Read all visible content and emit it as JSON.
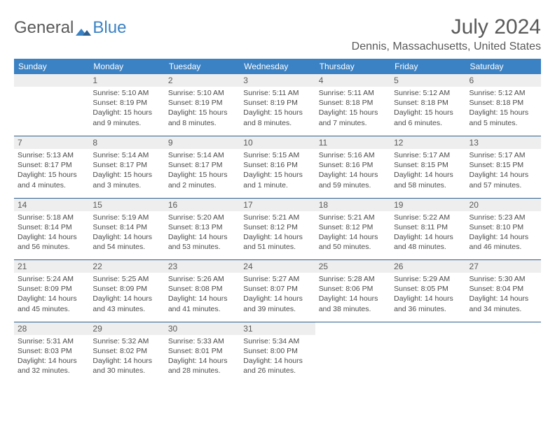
{
  "brand": {
    "part1": "General",
    "part2": "Blue"
  },
  "title": "July 2024",
  "location": "Dennis, Massachusetts, United States",
  "colors": {
    "header_bg": "#3b82c4",
    "header_text": "#ffffff",
    "daynum_bg": "#eeeeee",
    "body_text": "#4b4b4b",
    "title_text": "#595959",
    "week_border": "#2d5f8f"
  },
  "day_headers": [
    "Sunday",
    "Monday",
    "Tuesday",
    "Wednesday",
    "Thursday",
    "Friday",
    "Saturday"
  ],
  "weeks": [
    [
      null,
      {
        "n": "1",
        "sr": "5:10 AM",
        "ss": "8:19 PM",
        "dl": "15 hours and 9 minutes."
      },
      {
        "n": "2",
        "sr": "5:10 AM",
        "ss": "8:19 PM",
        "dl": "15 hours and 8 minutes."
      },
      {
        "n": "3",
        "sr": "5:11 AM",
        "ss": "8:19 PM",
        "dl": "15 hours and 8 minutes."
      },
      {
        "n": "4",
        "sr": "5:11 AM",
        "ss": "8:18 PM",
        "dl": "15 hours and 7 minutes."
      },
      {
        "n": "5",
        "sr": "5:12 AM",
        "ss": "8:18 PM",
        "dl": "15 hours and 6 minutes."
      },
      {
        "n": "6",
        "sr": "5:12 AM",
        "ss": "8:18 PM",
        "dl": "15 hours and 5 minutes."
      }
    ],
    [
      {
        "n": "7",
        "sr": "5:13 AM",
        "ss": "8:17 PM",
        "dl": "15 hours and 4 minutes."
      },
      {
        "n": "8",
        "sr": "5:14 AM",
        "ss": "8:17 PM",
        "dl": "15 hours and 3 minutes."
      },
      {
        "n": "9",
        "sr": "5:14 AM",
        "ss": "8:17 PM",
        "dl": "15 hours and 2 minutes."
      },
      {
        "n": "10",
        "sr": "5:15 AM",
        "ss": "8:16 PM",
        "dl": "15 hours and 1 minute."
      },
      {
        "n": "11",
        "sr": "5:16 AM",
        "ss": "8:16 PM",
        "dl": "14 hours and 59 minutes."
      },
      {
        "n": "12",
        "sr": "5:17 AM",
        "ss": "8:15 PM",
        "dl": "14 hours and 58 minutes."
      },
      {
        "n": "13",
        "sr": "5:17 AM",
        "ss": "8:15 PM",
        "dl": "14 hours and 57 minutes."
      }
    ],
    [
      {
        "n": "14",
        "sr": "5:18 AM",
        "ss": "8:14 PM",
        "dl": "14 hours and 56 minutes."
      },
      {
        "n": "15",
        "sr": "5:19 AM",
        "ss": "8:14 PM",
        "dl": "14 hours and 54 minutes."
      },
      {
        "n": "16",
        "sr": "5:20 AM",
        "ss": "8:13 PM",
        "dl": "14 hours and 53 minutes."
      },
      {
        "n": "17",
        "sr": "5:21 AM",
        "ss": "8:12 PM",
        "dl": "14 hours and 51 minutes."
      },
      {
        "n": "18",
        "sr": "5:21 AM",
        "ss": "8:12 PM",
        "dl": "14 hours and 50 minutes."
      },
      {
        "n": "19",
        "sr": "5:22 AM",
        "ss": "8:11 PM",
        "dl": "14 hours and 48 minutes."
      },
      {
        "n": "20",
        "sr": "5:23 AM",
        "ss": "8:10 PM",
        "dl": "14 hours and 46 minutes."
      }
    ],
    [
      {
        "n": "21",
        "sr": "5:24 AM",
        "ss": "8:09 PM",
        "dl": "14 hours and 45 minutes."
      },
      {
        "n": "22",
        "sr": "5:25 AM",
        "ss": "8:09 PM",
        "dl": "14 hours and 43 minutes."
      },
      {
        "n": "23",
        "sr": "5:26 AM",
        "ss": "8:08 PM",
        "dl": "14 hours and 41 minutes."
      },
      {
        "n": "24",
        "sr": "5:27 AM",
        "ss": "8:07 PM",
        "dl": "14 hours and 39 minutes."
      },
      {
        "n": "25",
        "sr": "5:28 AM",
        "ss": "8:06 PM",
        "dl": "14 hours and 38 minutes."
      },
      {
        "n": "26",
        "sr": "5:29 AM",
        "ss": "8:05 PM",
        "dl": "14 hours and 36 minutes."
      },
      {
        "n": "27",
        "sr": "5:30 AM",
        "ss": "8:04 PM",
        "dl": "14 hours and 34 minutes."
      }
    ],
    [
      {
        "n": "28",
        "sr": "5:31 AM",
        "ss": "8:03 PM",
        "dl": "14 hours and 32 minutes."
      },
      {
        "n": "29",
        "sr": "5:32 AM",
        "ss": "8:02 PM",
        "dl": "14 hours and 30 minutes."
      },
      {
        "n": "30",
        "sr": "5:33 AM",
        "ss": "8:01 PM",
        "dl": "14 hours and 28 minutes."
      },
      {
        "n": "31",
        "sr": "5:34 AM",
        "ss": "8:00 PM",
        "dl": "14 hours and 26 minutes."
      },
      null,
      null,
      null
    ]
  ],
  "labels": {
    "sunrise": "Sunrise:",
    "sunset": "Sunset:",
    "daylight": "Daylight:"
  }
}
